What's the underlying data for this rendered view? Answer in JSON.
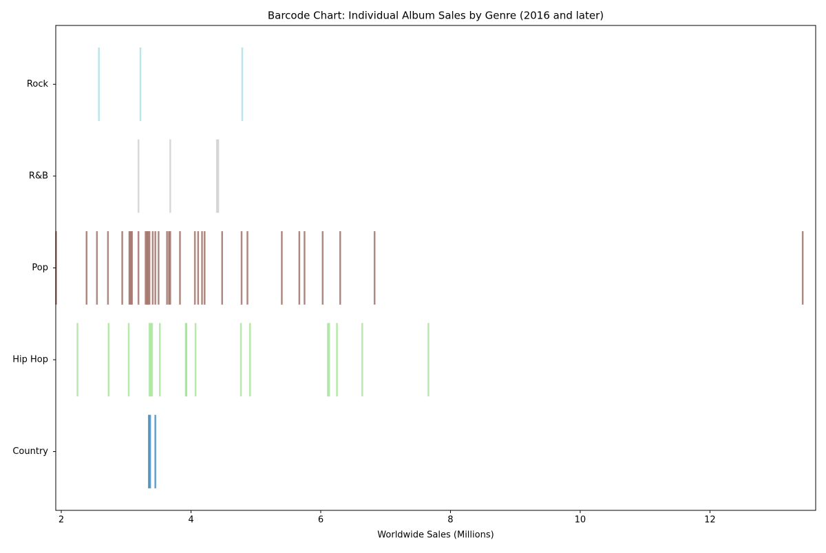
{
  "chart_data": {
    "type": "barcode",
    "title": "Barcode Chart: Individual Album Sales by Genre (2016 and later)",
    "xlabel": "Worldwide Sales (Millions)",
    "xlim": [
      1.915,
      13.63
    ],
    "xticks": [
      2,
      4,
      6,
      8,
      10,
      12
    ],
    "series": [
      {
        "name": "Country",
        "color": "#1f77b4",
        "values": [
          3.35,
          3.37,
          3.45
        ]
      },
      {
        "name": "Hip Hop",
        "color": "#98df8a",
        "values": [
          2.25,
          2.73,
          3.04,
          3.36,
          3.38,
          3.4,
          3.52,
          3.92,
          3.93,
          4.07,
          4.77,
          4.91,
          6.11,
          6.13,
          6.25,
          6.64,
          7.66
        ]
      },
      {
        "name": "Pop",
        "color": "#8c564b",
        "values": [
          1.92,
          2.39,
          2.55,
          2.72,
          2.94,
          3.05,
          3.07,
          3.09,
          3.19,
          3.3,
          3.32,
          3.34,
          3.36,
          3.41,
          3.45,
          3.5,
          3.63,
          3.66,
          3.68,
          3.83,
          4.06,
          4.11,
          4.17,
          4.21,
          4.48,
          4.78,
          4.87,
          5.4,
          5.67,
          5.75,
          6.03,
          6.3,
          6.83,
          13.43
        ]
      },
      {
        "name": "R&B",
        "color": "#c7c7c7",
        "values": [
          3.19,
          3.68,
          4.4,
          4.42
        ]
      },
      {
        "name": "Rock",
        "color": "#9edae5",
        "values": [
          2.58,
          3.22,
          4.79
        ]
      }
    ]
  }
}
